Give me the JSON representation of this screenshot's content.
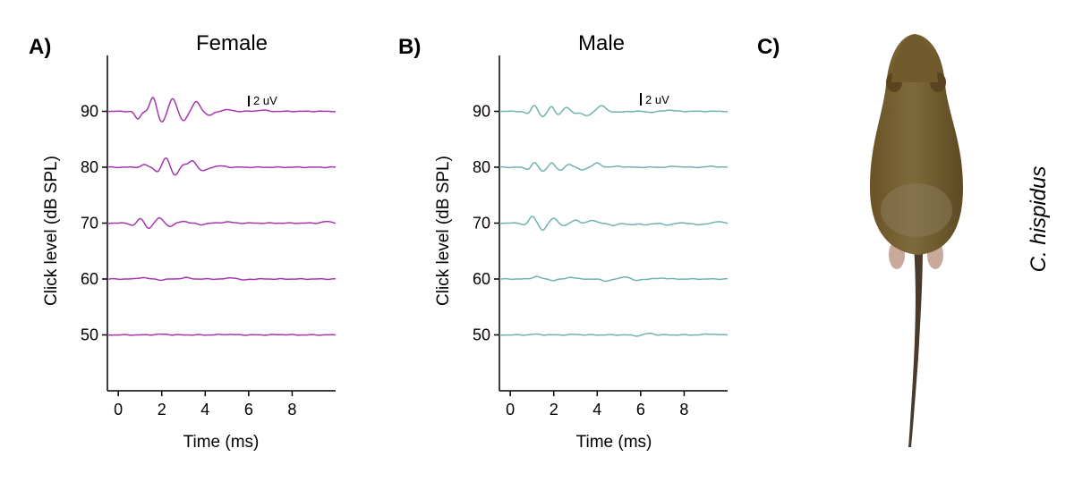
{
  "panels": {
    "a": {
      "label": "A)",
      "title": "Female"
    },
    "b": {
      "label": "B)",
      "title": "Male"
    },
    "c": {
      "label": "C)",
      "species": "C. hispidus"
    }
  },
  "colors": {
    "female": "#a437ad",
    "male": "#6fb3b0",
    "axis": "#000000"
  },
  "chart_data": [
    {
      "type": "line",
      "title": "Female",
      "xlabel": "Time (ms)",
      "ylabel": "Click level (dB SPL)",
      "xlim": [
        -0.5,
        10
      ],
      "ylim": [
        40,
        100
      ],
      "xticks": [
        0,
        2,
        4,
        6,
        8
      ],
      "yticks": [
        50,
        60,
        70,
        80,
        90
      ],
      "scale_bar": {
        "label": "2 uV",
        "value_uV": 2
      },
      "grid": false,
      "legend": "none",
      "series": [
        {
          "name": "90 dB SPL",
          "level": 90,
          "peaks": [
            [
              0.9,
              -2.5,
              0.18
            ],
            [
              1.6,
              4.5,
              0.2
            ],
            [
              2.0,
              -3.5,
              0.22
            ],
            [
              2.5,
              4.0,
              0.22
            ],
            [
              3.0,
              -3.0,
              0.22
            ],
            [
              3.6,
              3.2,
              0.22
            ],
            [
              4.2,
              -1.3,
              0.25
            ],
            [
              5.0,
              0.5,
              0.3
            ],
            [
              6.6,
              0.4,
              0.3
            ]
          ]
        },
        {
          "name": "80 dB SPL",
          "level": 80,
          "peaks": [
            [
              1.2,
              0.8,
              0.2
            ],
            [
              1.8,
              -1.4,
              0.2
            ],
            [
              2.2,
              3.0,
              0.22
            ],
            [
              2.6,
              -2.6,
              0.22
            ],
            [
              3.0,
              0.7,
              0.2
            ],
            [
              3.4,
              2.2,
              0.22
            ],
            [
              3.9,
              -1.2,
              0.25
            ],
            [
              4.7,
              0.4,
              0.3
            ]
          ]
        },
        {
          "name": "70 dB SPL",
          "level": 70,
          "peaks": [
            [
              0.7,
              -0.8,
              0.2
            ],
            [
              1.0,
              1.5,
              0.2
            ],
            [
              1.4,
              -1.6,
              0.2
            ],
            [
              1.9,
              1.7,
              0.2
            ],
            [
              2.4,
              -1.0,
              0.22
            ],
            [
              3.0,
              0.6,
              0.25
            ],
            [
              3.8,
              -0.5,
              0.25
            ],
            [
              5.0,
              0.4,
              0.3
            ],
            [
              9.6,
              0.5,
              0.3
            ]
          ]
        },
        {
          "name": "60 dB SPL",
          "level": 60,
          "peaks": [
            [
              1.1,
              0.5,
              0.25
            ],
            [
              2.0,
              -0.3,
              0.25
            ],
            [
              3.1,
              0.4,
              0.3
            ],
            [
              5.3,
              0.5,
              0.3
            ],
            [
              5.7,
              -0.4,
              0.3
            ]
          ]
        },
        {
          "name": "50 dB SPL",
          "level": 50,
          "peaks": [
            [
              2.0,
              0.2,
              0.4
            ],
            [
              5.0,
              0.15,
              0.4
            ],
            [
              7.5,
              0.1,
              0.4
            ]
          ]
        }
      ]
    },
    {
      "type": "line",
      "title": "Male",
      "xlabel": "Time (ms)",
      "ylabel": "Click level (dB SPL)",
      "xlim": [
        -0.5,
        10
      ],
      "ylim": [
        40,
        100
      ],
      "xticks": [
        0,
        2,
        4,
        6,
        8
      ],
      "yticks": [
        50,
        60,
        70,
        80,
        90
      ],
      "scale_bar": {
        "label": "2 uV",
        "value_uV": 2
      },
      "grid": false,
      "legend": "none",
      "series": [
        {
          "name": "90 dB SPL",
          "level": 90,
          "peaks": [
            [
              0.8,
              -0.8,
              0.2
            ],
            [
              1.1,
              2.0,
              0.18
            ],
            [
              1.5,
              -1.8,
              0.18
            ],
            [
              1.9,
              1.6,
              0.16
            ],
            [
              2.2,
              -1.0,
              0.18
            ],
            [
              2.6,
              1.2,
              0.2
            ],
            [
              3.0,
              -0.6,
              0.2
            ],
            [
              3.5,
              -1.5,
              0.25
            ],
            [
              4.2,
              1.8,
              0.25
            ],
            [
              5.0,
              -0.3,
              0.3
            ],
            [
              6.5,
              -0.3,
              0.3
            ],
            [
              7.3,
              0.4,
              0.3
            ]
          ]
        },
        {
          "name": "80 dB SPL",
          "level": 80,
          "peaks": [
            [
              0.8,
              -0.7,
              0.2
            ],
            [
              1.1,
              1.5,
              0.18
            ],
            [
              1.5,
              -1.3,
              0.18
            ],
            [
              1.9,
              1.5,
              0.16
            ],
            [
              2.3,
              -1.0,
              0.2
            ],
            [
              2.7,
              1.0,
              0.2
            ],
            [
              3.3,
              -0.8,
              0.25
            ],
            [
              4.0,
              1.3,
              0.25
            ],
            [
              5.0,
              0.3,
              0.3
            ],
            [
              7.6,
              0.3,
              0.3
            ],
            [
              9.3,
              0.3,
              0.3
            ]
          ]
        },
        {
          "name": "70 dB SPL",
          "level": 70,
          "peaks": [
            [
              0.7,
              -0.6,
              0.2
            ],
            [
              1.0,
              2.2,
              0.2
            ],
            [
              1.5,
              -2.2,
              0.2
            ],
            [
              2.0,
              1.6,
              0.2
            ],
            [
              2.5,
              -0.8,
              0.22
            ],
            [
              3.0,
              1.0,
              0.22
            ],
            [
              3.8,
              0.9,
              0.25
            ],
            [
              4.7,
              -0.7,
              0.3
            ],
            [
              5.5,
              -0.5,
              0.3
            ],
            [
              6.2,
              -0.6,
              0.3
            ],
            [
              7.2,
              -0.6,
              0.3
            ],
            [
              8.7,
              -0.6,
              0.3
            ],
            [
              9.6,
              0.4,
              0.3
            ]
          ]
        },
        {
          "name": "60 dB SPL",
          "level": 60,
          "peaks": [
            [
              1.2,
              0.8,
              0.25
            ],
            [
              2.0,
              -0.4,
              0.25
            ],
            [
              2.8,
              0.6,
              0.25
            ],
            [
              4.4,
              -0.6,
              0.3
            ],
            [
              5.3,
              0.8,
              0.25
            ],
            [
              5.8,
              -0.5,
              0.25
            ],
            [
              7.0,
              0.3,
              0.3
            ]
          ]
        },
        {
          "name": "50 dB SPL",
          "level": 50,
          "peaks": [
            [
              1.2,
              0.2,
              0.3
            ],
            [
              3.0,
              0.15,
              0.3
            ],
            [
              5.8,
              -0.3,
              0.25
            ],
            [
              6.4,
              0.5,
              0.25
            ],
            [
              9.2,
              0.3,
              0.3
            ]
          ]
        }
      ]
    }
  ]
}
